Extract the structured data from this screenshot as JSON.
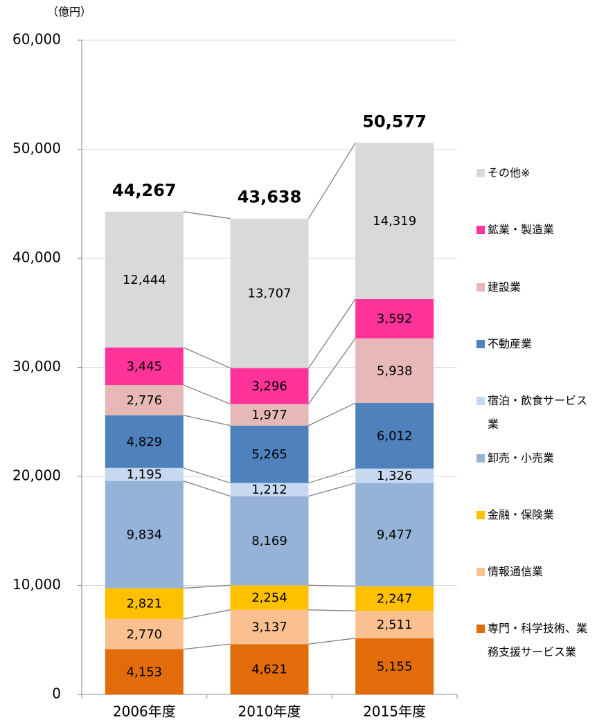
{
  "chart_data": {
    "type": "stacked_bar",
    "y_label": "（億円）",
    "categories": [
      "2006年度",
      "2010年度",
      "2015年度"
    ],
    "ylim": [
      0,
      60000
    ],
    "yticks": [
      0,
      {
        "value": 10000,
        "label": "10,000"
      },
      {
        "value": 20000,
        "label": "20,000"
      },
      {
        "value": 30000,
        "label": "30,000"
      },
      {
        "value": 40000,
        "label": "40,000"
      },
      {
        "value": 50000,
        "label": "50,000"
      },
      {
        "value": 60000,
        "label": "60,000"
      }
    ],
    "grid": true,
    "series": [
      {
        "name": "専門・科学技術、業務支援サービス業",
        "color": "#e36c0a",
        "values": [
          4153,
          4621,
          5155
        ],
        "value_labels": [
          "4,153",
          "4,621",
          "5,155"
        ]
      },
      {
        "name": "情報通信業",
        "color": "#fac090",
        "values": [
          2770,
          3137,
          2511
        ],
        "value_labels": [
          "2,770",
          "3,137",
          "2,511"
        ]
      },
      {
        "name": "金融・保険業",
        "color": "#ffc000",
        "values": [
          2821,
          2254,
          2247
        ],
        "value_labels": [
          "2,821",
          "2,254",
          "2,247"
        ]
      },
      {
        "name": "卸売・小売業",
        "color": "#95b3d7",
        "values": [
          9834,
          8169,
          9477
        ],
        "value_labels": [
          "9,834",
          "8,169",
          "9,477"
        ]
      },
      {
        "name": "宿泊・飲食サービス業",
        "color": "#c6d9f1",
        "values": [
          1195,
          1212,
          1326
        ],
        "value_labels": [
          "1,195",
          "1,212",
          "1,326"
        ]
      },
      {
        "name": "不動産業",
        "color": "#4f81bd",
        "values": [
          4829,
          5265,
          6012
        ],
        "value_labels": [
          "4,829",
          "5,265",
          "6,012"
        ]
      },
      {
        "name": "建設業",
        "color": "#e6b9b8",
        "values": [
          2776,
          1977,
          5938
        ],
        "value_labels": [
          "2,776",
          "1,977",
          "5,938"
        ]
      },
      {
        "name": "鉱業・製造業",
        "color": "#ff3399",
        "values": [
          3445,
          3296,
          3592
        ],
        "value_labels": [
          "3,445",
          "3,296",
          "3,592"
        ]
      },
      {
        "name": "その他※",
        "color": "#d9d9d9",
        "values": [
          12444,
          13707,
          14319
        ],
        "value_labels": [
          "12,444",
          "13,707",
          "14,319"
        ]
      }
    ],
    "totals": {
      "values": [
        44267,
        43638,
        50577
      ],
      "value_labels": [
        "44,267",
        "43,638",
        "50,577"
      ]
    }
  }
}
